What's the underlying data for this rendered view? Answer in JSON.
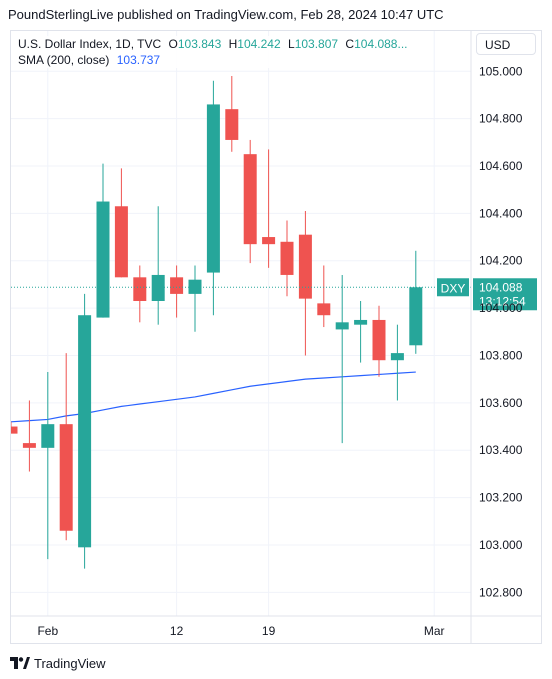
{
  "header": {
    "published_text": "PoundSterlingLive published on TradingView.com, Feb 28, 2024 10:47 UTC"
  },
  "legend": {
    "symbol": "U.S. Dollar Index, 1D, TVC",
    "open_label": "O",
    "open_value": "103.843",
    "high_label": "H",
    "high_value": "104.242",
    "low_label": "L",
    "low_value": "103.807",
    "close_label": "C",
    "close_value": "104.088",
    "ellipsis": "...",
    "sma_label": "SMA (200, close)",
    "sma_value": "103.737"
  },
  "currency_button": "USD",
  "footer": {
    "brand": "TradingView",
    "logo_icon": "tradingview-logo-icon"
  },
  "price_tag": {
    "symbol": "DXY",
    "price": "104.088",
    "countdown": "13:12:54"
  },
  "colors": {
    "up": "#26a69a",
    "down": "#ef5350",
    "sma": "#2962ff",
    "grid": "#f0f3fa"
  },
  "chart_data": {
    "type": "candlestick",
    "ylim": [
      102.7,
      105.17
    ],
    "y_ticks": [
      "105.000",
      "104.800",
      "104.600",
      "104.400",
      "104.200",
      "104.000",
      "103.800",
      "103.600",
      "103.400",
      "103.200",
      "103.000",
      "102.800"
    ],
    "x_ticks": [
      {
        "label": "Feb",
        "index": 2
      },
      {
        "label": "12",
        "index": 9
      },
      {
        "label": "19",
        "index": 14
      },
      {
        "label": "Mar",
        "index": 23
      }
    ],
    "last_price": 104.088,
    "candles": [
      {
        "o": 103.5,
        "h": 103.52,
        "l": 103.48,
        "c": 103.47
      },
      {
        "o": 103.43,
        "h": 103.61,
        "l": 103.31,
        "c": 103.41
      },
      {
        "o": 103.41,
        "h": 103.73,
        "l": 102.94,
        "c": 103.51
      },
      {
        "o": 103.51,
        "h": 103.81,
        "l": 103.02,
        "c": 103.06
      },
      {
        "o": 102.99,
        "h": 104.06,
        "l": 102.9,
        "c": 103.97
      },
      {
        "o": 103.96,
        "h": 104.61,
        "l": 103.96,
        "c": 104.45
      },
      {
        "o": 104.43,
        "h": 104.59,
        "l": 104.13,
        "c": 104.13
      },
      {
        "o": 104.13,
        "h": 104.18,
        "l": 103.94,
        "c": 104.03
      },
      {
        "o": 104.03,
        "h": 104.43,
        "l": 103.93,
        "c": 104.14
      },
      {
        "o": 104.13,
        "h": 104.18,
        "l": 103.96,
        "c": 104.06
      },
      {
        "o": 104.06,
        "h": 104.18,
        "l": 103.9,
        "c": 104.12
      },
      {
        "o": 104.15,
        "h": 104.96,
        "l": 103.97,
        "c": 104.86
      },
      {
        "o": 104.84,
        "h": 104.98,
        "l": 104.66,
        "c": 104.71
      },
      {
        "o": 104.65,
        "h": 104.71,
        "l": 104.19,
        "c": 104.27
      },
      {
        "o": 104.3,
        "h": 104.67,
        "l": 104.17,
        "c": 104.27
      },
      {
        "o": 104.28,
        "h": 104.37,
        "l": 104.05,
        "c": 104.14
      },
      {
        "o": 104.31,
        "h": 104.41,
        "l": 103.8,
        "c": 104.04
      },
      {
        "o": 104.02,
        "h": 104.18,
        "l": 103.92,
        "c": 103.97
      },
      {
        "o": 103.91,
        "h": 104.14,
        "l": 103.43,
        "c": 103.94
      },
      {
        "o": 103.93,
        "h": 104.03,
        "l": 103.77,
        "c": 103.95
      },
      {
        "o": 103.95,
        "h": 104.01,
        "l": 103.71,
        "c": 103.78
      },
      {
        "o": 103.78,
        "h": 103.93,
        "l": 103.61,
        "c": 103.81
      },
      {
        "o": 103.843,
        "h": 104.242,
        "l": 103.807,
        "c": 104.088
      }
    ],
    "sma": [
      103.52,
      103.525,
      103.53,
      103.545,
      103.555,
      103.57,
      103.585,
      103.595,
      103.605,
      103.615,
      103.625,
      103.64,
      103.655,
      103.67,
      103.68,
      103.69,
      103.7,
      103.705,
      103.71,
      103.715,
      103.72,
      103.725,
      103.73
    ]
  }
}
